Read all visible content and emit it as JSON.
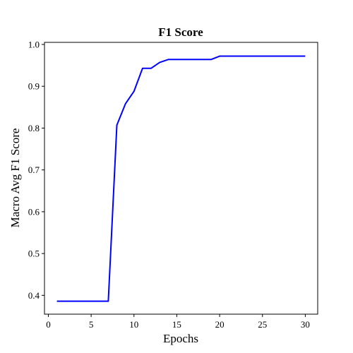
{
  "chart_data": {
    "type": "line",
    "title": "F1 Score",
    "xlabel": "Epochs",
    "ylabel": "Macro Avg F1 Score",
    "xlim": [
      -0.45,
      31.45
    ],
    "ylim": [
      0.355,
      1.005
    ],
    "xticks": [
      0,
      5,
      10,
      15,
      20,
      25,
      30
    ],
    "yticks": [
      0.4,
      0.5,
      0.6,
      0.7,
      0.8,
      0.9,
      1.0
    ],
    "xtick_labels": [
      "0",
      "5",
      "10",
      "15",
      "20",
      "25",
      "30"
    ],
    "ytick_labels": [
      "0.4",
      "0.5",
      "0.6",
      "0.7",
      "0.8",
      "0.9",
      "1.0"
    ],
    "grid": false,
    "legend": "none",
    "series": [
      {
        "color": "#0000ff",
        "x": [
          1,
          2,
          3,
          4,
          5,
          6,
          7,
          8,
          9,
          10,
          11,
          12,
          13,
          14,
          15,
          16,
          17,
          18,
          19,
          20,
          21,
          22,
          23,
          24,
          25,
          26,
          27,
          28,
          29,
          30
        ],
        "y": [
          0.386,
          0.386,
          0.386,
          0.386,
          0.386,
          0.386,
          0.386,
          0.807,
          0.858,
          0.888,
          0.943,
          0.943,
          0.957,
          0.964,
          0.964,
          0.964,
          0.964,
          0.964,
          0.964,
          0.972,
          0.972,
          0.972,
          0.972,
          0.972,
          0.972,
          0.972,
          0.972,
          0.972,
          0.972,
          0.972
        ]
      }
    ]
  }
}
